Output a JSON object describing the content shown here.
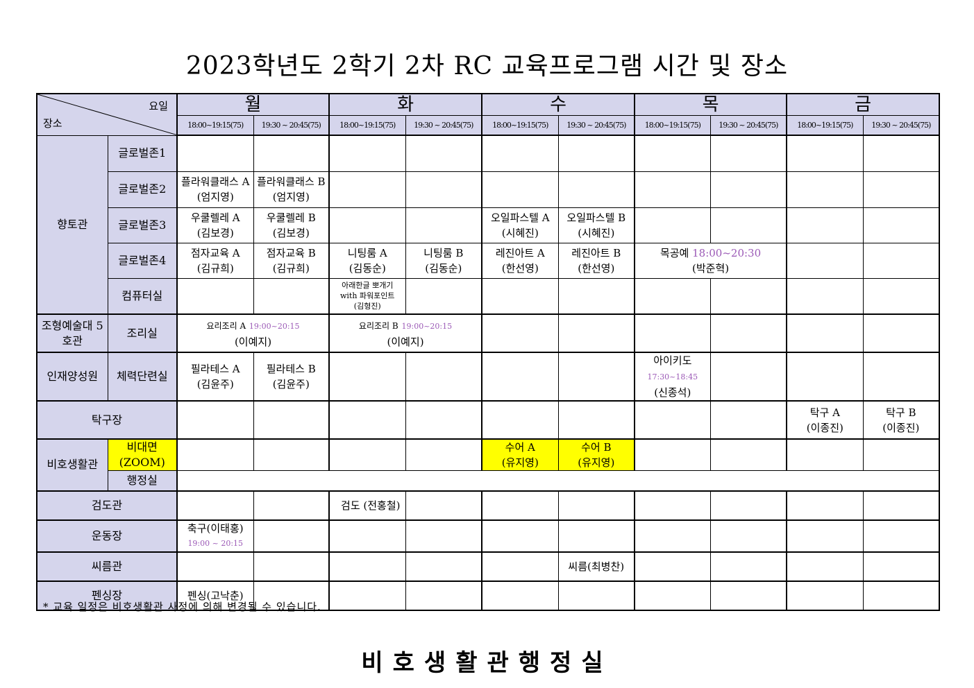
{
  "title": "2023학년도 2학기 2차 RC 교육프로그램 시간 및 장소",
  "header": {
    "corner_top": "요일",
    "corner_bottom": "장소",
    "days": [
      "월",
      "화",
      "수",
      "목",
      "금"
    ],
    "slots": [
      "18:00~19:15(75)",
      "19:30 ~ 20:45(75)"
    ]
  },
  "colors": {
    "header_bg": "#d5d5ec",
    "highlight": "#ffff00",
    "time_text": "#9b59b6"
  },
  "rows": [
    {
      "group": "향토관",
      "group_rowspan": 5,
      "room": "글로벌존1",
      "cells": [
        {},
        {},
        {},
        {},
        {},
        {},
        {},
        {},
        {},
        {}
      ]
    },
    {
      "room": "글로벌존2",
      "cells": [
        {
          "title": "플라워클래스 A",
          "teacher": "(엄지영)"
        },
        {
          "title": "플라워클래스 B",
          "teacher": "(엄지영)"
        },
        {},
        {},
        {},
        {},
        {},
        {},
        {},
        {}
      ]
    },
    {
      "room": "글로벌존3",
      "cells": [
        {
          "title": "우쿨렐레 A",
          "teacher": "(김보경)"
        },
        {
          "title": "우쿨렐레 B",
          "teacher": "(김보경)"
        },
        {},
        {},
        {
          "title": "오일파스텔 A",
          "teacher": "(시혜진)"
        },
        {
          "title": "오일파스텔 B",
          "teacher": "(시혜진)"
        },
        {},
        {},
        {},
        {}
      ]
    },
    {
      "room": "글로벌존4",
      "cells": [
        {
          "title": "점자교육 A",
          "teacher": "(김규희)"
        },
        {
          "title": "점자교육 B",
          "teacher": "(김규희)"
        },
        {
          "title": "니팅룸 A",
          "teacher": "(김동순)"
        },
        {
          "title": "니팅룸 B",
          "teacher": "(김동순)"
        },
        {
          "title": "레진아트 A",
          "teacher": "(한선영)"
        },
        {
          "title": "레진아트 B",
          "teacher": "(한선영)"
        },
        {
          "title": "목공예",
          "time": "18:00~20:30",
          "teacher": "(박준혁)",
          "span": 2
        },
        {},
        {}
      ]
    },
    {
      "room": "컴퓨터실",
      "thick": true,
      "cells": [
        {},
        {},
        {
          "title": "아래한글 뽀개기",
          "title2": "with 파워포인트",
          "teacher": "(김형진)",
          "small": true
        },
        {},
        {},
        {},
        {},
        {},
        {},
        {}
      ]
    },
    {
      "group": "조형예술대 5호관",
      "room": "조리실",
      "thick": true,
      "cells": [
        {
          "title": "요리조리 A",
          "time": "19:00~20:15",
          "teacher": "(이예지)",
          "span": 2,
          "smalltitle": true
        },
        {
          "title": "요리조리 B",
          "time": "19:00~20:15",
          "teacher": "(이예지)",
          "span": 2,
          "smalltitle": true
        },
        {},
        {},
        {},
        {},
        {},
        {}
      ]
    },
    {
      "group": "인재양성원",
      "room": "체력단련실",
      "thick": true,
      "cells": [
        {
          "title": "필라테스 A",
          "teacher": "(김윤주)"
        },
        {
          "title": "필라테스 B",
          "teacher": "(김윤주)"
        },
        {},
        {},
        {},
        {},
        {
          "title": "아이키도",
          "time": "17:30~18:45",
          "teacher": "(신종석)"
        },
        {},
        {},
        {}
      ]
    },
    {
      "place": "탁구장",
      "thick": true,
      "cells": [
        {},
        {},
        {},
        {},
        {},
        {},
        {},
        {},
        {
          "title": "탁구 A",
          "teacher": "(이종진)"
        },
        {
          "title": "탁구 B",
          "teacher": "(이종진)"
        }
      ]
    },
    {
      "group": "비호생활관",
      "group_rowspan": 2,
      "room": "비대면",
      "room2": "(ZOOM)",
      "room_highlight": true,
      "cells": [
        {},
        {},
        {},
        {},
        {
          "title": "수어 A",
          "teacher": "(유지영)",
          "highlight": true
        },
        {
          "title": "수어 B",
          "teacher": "(유지영)",
          "highlight": true
        },
        {},
        {},
        {},
        {}
      ]
    },
    {
      "room": "행정실",
      "thick": true,
      "cells": [
        {
          "span": 10
        }
      ]
    },
    {
      "place": "검도관",
      "thick": true,
      "cells": [
        {},
        {},
        {
          "title": "검도 (전홍철)",
          "align": "left"
        },
        {},
        {},
        {},
        {},
        {},
        {},
        {}
      ]
    },
    {
      "place": "운동장",
      "thick": true,
      "cells": [
        {
          "title": "축구(이태홍)",
          "time2": "19:00 ~ 20:15"
        },
        {},
        {},
        {},
        {},
        {},
        {},
        {},
        {},
        {}
      ]
    },
    {
      "place": "씨름관",
      "thick": true,
      "cells": [
        {},
        {},
        {},
        {},
        {},
        {
          "title": "씨름(최병찬)"
        },
        {},
        {},
        {},
        {}
      ]
    },
    {
      "place": "펜싱장",
      "cells": [
        {
          "title": "펜싱(고낙춘)"
        },
        {},
        {},
        {},
        {},
        {},
        {},
        {},
        {},
        {}
      ]
    }
  ],
  "note": "* 교육 일정은 비호생활관 사정에 의해 변경될 수 있습니다.",
  "footer": "비호생활관행정실"
}
